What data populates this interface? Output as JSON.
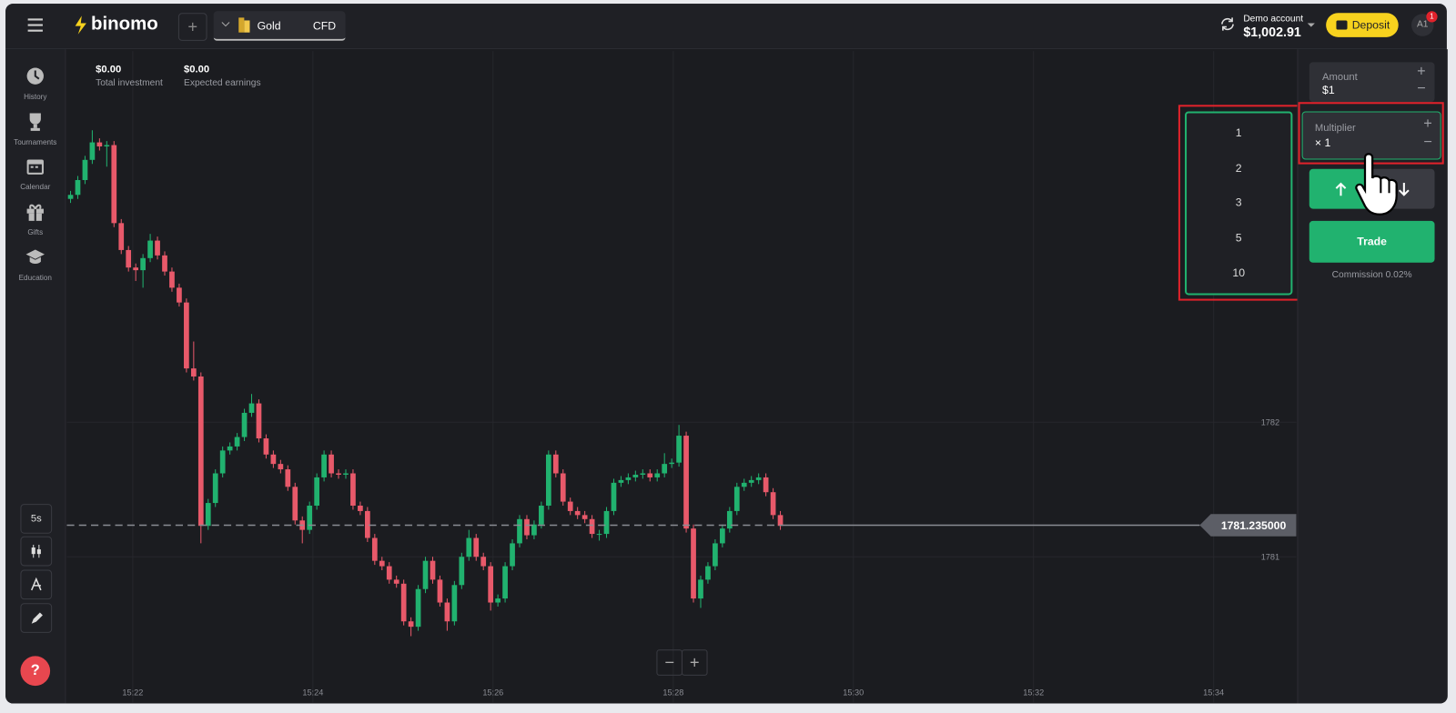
{
  "header": {
    "logo": "binomo",
    "asset": "Gold",
    "asset_type": "CFD",
    "account_label": "Demo account",
    "balance": "$1,002.91",
    "deposit": "Deposit",
    "avatar": "A1",
    "notification_count": 1
  },
  "sidebar": {
    "items": [
      "History",
      "Tournaments",
      "Calendar",
      "Gifts",
      "Education"
    ],
    "timeframe": "5s",
    "help": "?"
  },
  "summary": {
    "total_investment": "$0.00",
    "total_investment_label": "Total investment",
    "expected_earnings": "$0.00",
    "expected_earnings_label": "Expected earnings"
  },
  "chart_data": {
    "type": "candlestick",
    "up_color": "#21b26f",
    "down_color": "#e8596a",
    "grid": true,
    "open": [
      1783.66,
      1783.69,
      1783.8,
      1783.95,
      1784.08,
      1784.05,
      1784.06,
      1783.48,
      1783.28,
      1783.15,
      1783.13,
      1783.22,
      1783.35,
      1783.24,
      1783.12,
      1783.0,
      1782.89,
      1782.4,
      1782.34,
      1781.23,
      1781.4,
      1781.62,
      1781.79,
      1781.82,
      1781.89,
      1782.07,
      1782.14,
      1781.88,
      1781.76,
      1781.69,
      1781.65,
      1781.52,
      1781.27,
      1781.2,
      1781.38,
      1781.59,
      1781.76,
      1781.62,
      1781.61,
      1781.62,
      1781.38,
      1781.34,
      1781.14,
      1780.97,
      1780.93,
      1780.83,
      1780.8,
      1780.52,
      1780.48,
      1780.76,
      1780.97,
      1780.83,
      1780.66,
      1780.52,
      1780.79,
      1781.0,
      1781.14,
      1781.0,
      1780.93,
      1780.66,
      1780.69,
      1780.93,
      1781.1,
      1781.28,
      1781.16,
      1781.24,
      1781.38,
      1781.76,
      1781.62,
      1781.41,
      1781.34,
      1781.31,
      1781.28,
      1781.17,
      1781.17,
      1781.34,
      1781.55,
      1781.57,
      1781.59,
      1781.61,
      1781.62,
      1781.59,
      1781.62,
      1781.69,
      1781.7,
      1781.9,
      1781.21,
      1780.69,
      1780.83,
      1780.93,
      1781.1,
      1781.21,
      1781.34,
      1781.52,
      1781.55,
      1781.57,
      1781.59,
      1781.48,
      1781.31
    ],
    "high": [
      1783.72,
      1783.83,
      1783.98,
      1784.17,
      1784.11,
      1784.09,
      1784.09,
      1783.51,
      1783.31,
      1783.18,
      1783.25,
      1783.4,
      1783.38,
      1783.27,
      1783.15,
      1783.03,
      1782.92,
      1782.6,
      1782.37,
      1781.43,
      1781.65,
      1781.82,
      1781.85,
      1781.92,
      1782.1,
      1782.21,
      1782.17,
      1781.91,
      1781.79,
      1781.72,
      1781.68,
      1781.55,
      1781.3,
      1781.41,
      1781.62,
      1781.79,
      1781.79,
      1781.65,
      1781.65,
      1781.65,
      1781.41,
      1781.37,
      1781.17,
      1781.0,
      1780.96,
      1780.86,
      1780.83,
      1780.55,
      1780.79,
      1781.0,
      1781.0,
      1780.86,
      1780.69,
      1780.82,
      1781.03,
      1781.2,
      1781.17,
      1781.03,
      1780.96,
      1780.72,
      1780.96,
      1781.13,
      1781.31,
      1781.31,
      1781.27,
      1781.41,
      1781.79,
      1781.79,
      1781.65,
      1781.44,
      1781.37,
      1781.34,
      1781.31,
      1781.2,
      1781.37,
      1781.58,
      1781.6,
      1781.62,
      1781.64,
      1781.65,
      1781.65,
      1781.65,
      1781.77,
      1781.73,
      1781.98,
      1781.93,
      1781.24,
      1780.86,
      1780.96,
      1781.13,
      1781.24,
      1781.37,
      1781.55,
      1781.58,
      1781.6,
      1781.62,
      1781.62,
      1781.51,
      1781.34
    ],
    "low": [
      1783.63,
      1783.66,
      1783.77,
      1783.92,
      1784.02,
      1783.9,
      1783.45,
      1783.25,
      1783.12,
      1783.05,
      1783.0,
      1783.19,
      1783.21,
      1783.09,
      1782.97,
      1782.86,
      1782.37,
      1782.31,
      1781.1,
      1781.2,
      1781.37,
      1781.59,
      1781.76,
      1781.79,
      1781.86,
      1782.04,
      1781.85,
      1781.73,
      1781.66,
      1781.62,
      1781.49,
      1781.24,
      1781.1,
      1781.17,
      1781.35,
      1781.56,
      1781.59,
      1781.58,
      1781.58,
      1781.35,
      1781.31,
      1781.11,
      1780.94,
      1780.9,
      1780.8,
      1780.77,
      1780.49,
      1780.41,
      1780.45,
      1780.73,
      1780.8,
      1780.63,
      1780.45,
      1780.49,
      1780.76,
      1780.97,
      1780.97,
      1780.9,
      1780.6,
      1780.63,
      1780.66,
      1780.9,
      1781.07,
      1781.13,
      1781.13,
      1781.21,
      1781.35,
      1781.59,
      1781.38,
      1781.31,
      1781.28,
      1781.25,
      1781.14,
      1781.12,
      1781.14,
      1781.31,
      1781.52,
      1781.54,
      1781.56,
      1781.58,
      1781.56,
      1781.56,
      1781.59,
      1781.66,
      1781.67,
      1781.18,
      1780.66,
      1780.62,
      1780.8,
      1780.9,
      1781.07,
      1781.18,
      1781.31,
      1781.49,
      1781.52,
      1781.54,
      1781.45,
      1781.28,
      1781.2
    ],
    "close": [
      1783.69,
      1783.8,
      1783.95,
      1784.08,
      1784.05,
      1784.06,
      1783.48,
      1783.28,
      1783.15,
      1783.13,
      1783.22,
      1783.35,
      1783.24,
      1783.12,
      1783.0,
      1782.89,
      1782.4,
      1782.34,
      1781.23,
      1781.4,
      1781.62,
      1781.79,
      1781.82,
      1781.89,
      1782.07,
      1782.14,
      1781.88,
      1781.76,
      1781.69,
      1781.65,
      1781.52,
      1781.27,
      1781.2,
      1781.38,
      1781.59,
      1781.76,
      1781.62,
      1781.61,
      1781.62,
      1781.38,
      1781.34,
      1781.14,
      1780.97,
      1780.93,
      1780.83,
      1780.8,
      1780.52,
      1780.48,
      1780.76,
      1780.97,
      1780.83,
      1780.66,
      1780.52,
      1780.79,
      1781.0,
      1781.14,
      1781.0,
      1780.93,
      1780.66,
      1780.69,
      1780.93,
      1781.1,
      1781.28,
      1781.16,
      1781.24,
      1781.38,
      1781.76,
      1781.62,
      1781.41,
      1781.34,
      1781.31,
      1781.28,
      1781.17,
      1781.17,
      1781.34,
      1781.55,
      1781.57,
      1781.59,
      1781.61,
      1781.62,
      1781.59,
      1781.62,
      1781.69,
      1781.7,
      1781.9,
      1781.21,
      1780.69,
      1780.83,
      1780.93,
      1781.1,
      1781.21,
      1781.34,
      1781.52,
      1781.55,
      1781.57,
      1781.59,
      1781.48,
      1781.31,
      1781.23
    ],
    "xlim": [
      -0.51,
      169.23
    ],
    "xticks": [
      {
        "value": 8.59,
        "label": "15:22"
      },
      {
        "value": 33.46,
        "label": "15:24"
      },
      {
        "value": 58.33,
        "label": "15:26"
      },
      {
        "value": 83.21,
        "label": "15:28"
      },
      {
        "value": 108.08,
        "label": "15:30"
      },
      {
        "value": 132.95,
        "label": "15:32"
      },
      {
        "value": 157.82,
        "label": "15:34"
      }
    ],
    "ylim": [
      1779.917,
      1784.759
    ],
    "yticks": [
      1781,
      1782
    ],
    "current_price": {
      "value": 1781.235,
      "label": "1781.235000"
    }
  },
  "multiplier_menu": {
    "options": [
      1,
      2,
      3,
      5,
      10
    ]
  },
  "trade_panel": {
    "amount_label": "Amount",
    "amount": "$1",
    "multiplier_label": "Multiplier",
    "multiplier": "× 1",
    "trade": "Trade",
    "commission": "Commission 0.02%"
  }
}
